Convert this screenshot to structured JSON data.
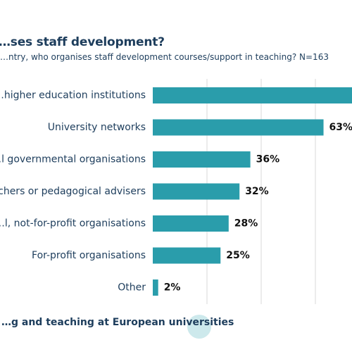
{
  "title": "…ses staff development?",
  "subtitle": "…ntry, who organises staff development courses/support in teaching? N=163",
  "footer": "…g and teaching at European universities",
  "colors": {
    "bar": "#2a9dab",
    "text": "#1d3d5c",
    "grid": "#d9d9d9",
    "deco": "#cde9ec"
  },
  "chart_data": {
    "type": "bar",
    "orientation": "horizontal",
    "categories": [
      "…higher education institutions",
      "University networks",
      "…l governmental organisations",
      "…chers or pedagogical advisers",
      "…l, not-for-profit organisations",
      "For-profit organisations",
      "Other"
    ],
    "values": [
      null,
      63,
      36,
      32,
      28,
      25,
      2
    ],
    "labels": [
      "",
      "63%",
      "36%",
      "32%",
      "28%",
      "25%",
      "2%"
    ],
    "xlim": [
      0,
      100
    ],
    "grid": true
  }
}
